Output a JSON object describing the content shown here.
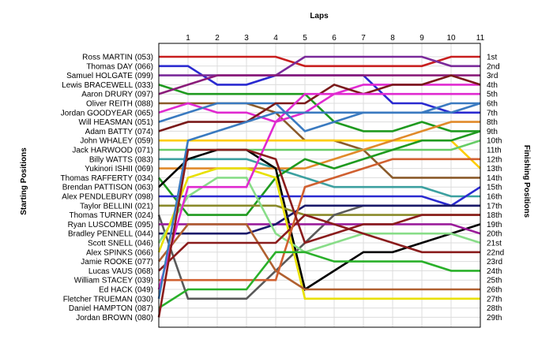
{
  "chart_data": {
    "type": "line",
    "title": "Laps",
    "ylabel_left": "Starting Positions",
    "ylabel_right": "Finishing Positions",
    "x": [
      0,
      1,
      2,
      3,
      4,
      5,
      6,
      7,
      8,
      9,
      10,
      11
    ],
    "x_tick_labels": [
      "1",
      "2",
      "3",
      "4",
      "5",
      "6",
      "7",
      "8",
      "9",
      "10",
      "11"
    ],
    "position_labels": [
      "1st",
      "2nd",
      "3rd",
      "4th",
      "5th",
      "6th",
      "7th",
      "8th",
      "9th",
      "10th",
      "11th",
      "12th",
      "13th",
      "14th",
      "15th",
      "16th",
      "17th",
      "18th",
      "19th",
      "20th",
      "21st",
      "22nd",
      "23rd",
      "24th",
      "25th",
      "26th",
      "27th",
      "28th",
      "29th"
    ],
    "grid": true,
    "series": [
      {
        "name": "Ross MARTIN (053)",
        "color": "#c81e1e",
        "values": [
          1,
          1,
          1,
          1,
          1,
          2,
          2,
          2,
          2,
          2,
          1,
          1
        ]
      },
      {
        "name": "Thomas DAY (066)",
        "color": "#2a2ad0",
        "values": [
          2,
          2,
          4,
          4,
          3,
          3,
          3,
          3,
          6,
          6,
          7,
          7
        ]
      },
      {
        "name": "Samuel HOLGATE (099)",
        "color": "#7a2a9a",
        "values": [
          3,
          3,
          3,
          3,
          3,
          1,
          1,
          1,
          1,
          1,
          2,
          2
        ]
      },
      {
        "name": "Lewis BRACEWELL (033)",
        "color": "#1f9a1f",
        "values": [
          4,
          5,
          5,
          5,
          5,
          5,
          8,
          9,
          9,
          8,
          9,
          9
        ]
      },
      {
        "name": "Aaron DRURY (097)",
        "color": "#8a1c7a",
        "values": [
          5,
          4,
          3,
          3,
          3,
          3,
          3,
          3,
          3,
          3,
          3,
          3
        ]
      },
      {
        "name": "Oliver REITH (088)",
        "color": "#8a5a2a",
        "values": [
          6,
          6,
          6,
          6,
          7,
          10,
          10,
          11,
          14,
          14,
          14,
          14
        ]
      },
      {
        "name": "Jordan GOODYEAR (065)",
        "color": "#e02ad0",
        "values": [
          7,
          6,
          7,
          7,
          8,
          7,
          5,
          4,
          4,
          4,
          4,
          4
        ]
      },
      {
        "name": "Will HEASMAN (051)",
        "color": "#3a7ac0",
        "values": [
          8,
          7,
          6,
          6,
          6,
          9,
          8,
          7,
          7,
          7,
          7,
          6
        ]
      },
      {
        "name": "Adam BATTY (074)",
        "color": "#7a1a1a",
        "values": [
          9,
          8,
          8,
          8,
          6,
          6,
          4,
          5,
          4,
          4,
          3,
          4
        ]
      },
      {
        "name": "John WHALEY (059)",
        "color": "#ffcc00",
        "values": [
          10,
          10,
          10,
          10,
          10,
          10,
          10,
          10,
          10,
          10,
          10,
          13
        ]
      },
      {
        "name": "Jack HARWOOD (071)",
        "color": "#66cc66",
        "values": [
          11,
          11,
          11,
          11,
          11,
          11,
          11,
          11,
          11,
          11,
          11,
          10
        ]
      },
      {
        "name": "Billy WATTS (083)",
        "color": "#3ca0a0",
        "values": [
          12,
          12,
          12,
          12,
          13,
          14,
          15,
          15,
          15,
          15,
          16,
          16
        ]
      },
      {
        "name": "Yukinori ISHII (069)",
        "color": "#e08a2a",
        "values": [
          13,
          13,
          13,
          13,
          13,
          13,
          12,
          11,
          10,
          9,
          8,
          8
        ]
      },
      {
        "name": "Thomas RAFFERTY (034)",
        "color": "#1f9a1f",
        "values": [
          14,
          18,
          18,
          18,
          14,
          12,
          13,
          12,
          11,
          10,
          10,
          9
        ]
      },
      {
        "name": "Brendan PATTISON (063)",
        "color": "#000000",
        "values": [
          15,
          12,
          11,
          11,
          13,
          26,
          24,
          22,
          22,
          21,
          20,
          19
        ]
      },
      {
        "name": "Alex PENDLEBURY (098)",
        "color": "#2a2ad0",
        "values": [
          16,
          16,
          16,
          16,
          16,
          16,
          16,
          16,
          16,
          16,
          17,
          15
        ]
      },
      {
        "name": "Taylor BELLINI (021)",
        "color": "#8a8a2a",
        "values": [
          17,
          17,
          17,
          17,
          17,
          18,
          18,
          18,
          18,
          18,
          18,
          18
        ]
      },
      {
        "name": "Thomas TURNER (024)",
        "color": "#5a5a5a",
        "values": [
          18,
          27,
          27,
          27,
          24,
          21,
          18,
          17,
          17,
          17,
          17,
          17
        ]
      },
      {
        "name": "Ryan LUSCOMBE (095)",
        "color": "#9a1c9a",
        "values": [
          19,
          19,
          19,
          19,
          19,
          19,
          19,
          19,
          19,
          19,
          19,
          20
        ]
      },
      {
        "name": "Bradley PENNELL (044)",
        "color": "#1a1a6a",
        "values": [
          20,
          20,
          20,
          20,
          19,
          17,
          17,
          17,
          17,
          17,
          17,
          17
        ]
      },
      {
        "name": "Scott SNELL (046)",
        "color": "#88dd88",
        "values": [
          21,
          16,
          14,
          14,
          20,
          22,
          21,
          20,
          20,
          20,
          20,
          21
        ]
      },
      {
        "name": "Alex SPINKS (066)",
        "color": "#e8e000",
        "values": [
          22,
          14,
          13,
          13,
          14,
          27,
          27,
          27,
          27,
          27,
          27,
          27
        ]
      },
      {
        "name": "Jamie ROOKE (077)",
        "color": "#b06030",
        "values": [
          23,
          19,
          19,
          19,
          24,
          26,
          26,
          26,
          26,
          26,
          26,
          26
        ]
      },
      {
        "name": "Lucas VAUS (068)",
        "color": "#8a1c1c",
        "values": [
          24,
          21,
          21,
          21,
          21,
          18,
          19,
          20,
          21,
          22,
          22,
          22
        ]
      },
      {
        "name": "William STACEY (039)",
        "color": "#d06030",
        "values": [
          25,
          25,
          25,
          25,
          25,
          15,
          14,
          13,
          12,
          12,
          12,
          12
        ]
      },
      {
        "name": "Ed HACK (049)",
        "color": "#e02ad0",
        "values": [
          26,
          15,
          15,
          15,
          8,
          5,
          5,
          5,
          5,
          5,
          5,
          5
        ]
      },
      {
        "name": "Fletcher TRUEMAN (030)",
        "color": "#3a7ac0",
        "values": [
          27,
          10,
          9,
          8,
          7,
          7,
          7,
          7,
          7,
          7,
          6,
          6
        ]
      },
      {
        "name": "Daniel HAMPTON (087)",
        "color": "#2ab02a",
        "values": [
          28,
          26,
          26,
          26,
          22,
          22,
          23,
          23,
          23,
          23,
          24,
          24
        ]
      },
      {
        "name": "Jordan BROWN (080)",
        "color": "#8a1c1c",
        "values": [
          29,
          11,
          11,
          11,
          12,
          21,
          20,
          19,
          19,
          18,
          18,
          18
        ]
      }
    ],
    "ylim": [
      1,
      29
    ]
  }
}
